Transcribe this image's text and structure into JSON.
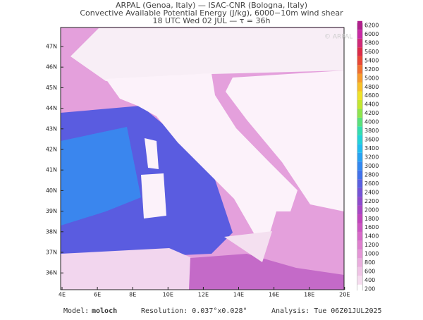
{
  "header": {
    "line1": "ARPAL (Genoa, Italy)  —  ISAC-CNR (Bologna, Italy)",
    "line2": "Convective Available Potential Energy (J/kg), 6000−10m wind shear",
    "line3": "18 UTC Wed 02 JUL  —  τ = 36h"
  },
  "map": {
    "lon_ticks": [
      "4E",
      "6E",
      "8E",
      "10E",
      "12E",
      "14E",
      "16E",
      "18E",
      "20E"
    ],
    "lat_ticks": [
      "47N",
      "46N",
      "45N",
      "44N",
      "43N",
      "42N",
      "41N",
      "40N",
      "39N",
      "38N",
      "37N",
      "36N"
    ],
    "watermark": "© ARPAL"
  },
  "colorbar": {
    "levels": [
      200,
      400,
      600,
      800,
      1000,
      1200,
      1400,
      1600,
      1800,
      2000,
      2200,
      2400,
      2600,
      2800,
      3000,
      3200,
      3400,
      3600,
      3800,
      4000,
      4200,
      4400,
      4600,
      4800,
      5000,
      5200,
      5400,
      5600,
      5800,
      6000,
      6200
    ],
    "colors": [
      "#ffffff",
      "#f6dcef",
      "#f0c4e6",
      "#eaaede",
      "#e496d6",
      "#de80ce",
      "#d66ac8",
      "#cc56c2",
      "#c046bc",
      "#a848c4",
      "#8e4ccc",
      "#7454d6",
      "#5a60e0",
      "#4272ea",
      "#3288f0",
      "#28a2f2",
      "#22bcf0",
      "#24d2d8",
      "#34dcb0",
      "#5ae07c",
      "#8ee44e",
      "#c2e630",
      "#eee22a",
      "#f6c02a",
      "#f69a2c",
      "#f07030",
      "#e84836",
      "#dc2c48",
      "#d02a78",
      "#c82aa4",
      "#b0208c"
    ]
  },
  "footer": {
    "model_label": "Model:",
    "model": "moloch",
    "resolution": "Resolution: 0.037°x0.028°",
    "analysis": "Analysis: Tue 06Z01JUL2025"
  }
}
